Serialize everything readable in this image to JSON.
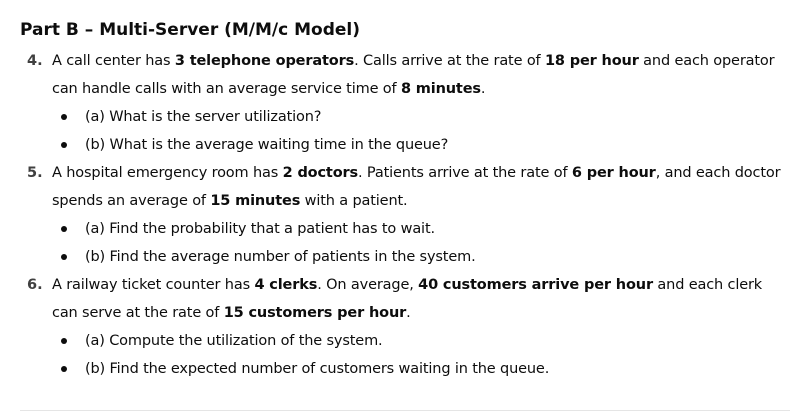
{
  "section": {
    "title": "Part B – Multi-Server (M/M/c Model)"
  },
  "problems": [
    {
      "number": "4.",
      "text": [
        {
          "t": "A call center has ",
          "b": false
        },
        {
          "t": "3 telephone operators",
          "b": true
        },
        {
          "t": ". Calls arrive at the rate of ",
          "b": false
        },
        {
          "t": "18 per hour",
          "b": true
        },
        {
          "t": " and each operator can handle calls with an average service time of ",
          "b": false
        },
        {
          "t": "8 minutes",
          "b": true
        },
        {
          "t": ".",
          "b": false
        }
      ],
      "subs": [
        "(a) What is the server utilization?",
        "(b) What is the average waiting time in the queue?"
      ]
    },
    {
      "number": "5.",
      "text": [
        {
          "t": "A hospital emergency room has ",
          "b": false
        },
        {
          "t": "2 doctors",
          "b": true
        },
        {
          "t": ". Patients arrive at the rate of ",
          "b": false
        },
        {
          "t": "6 per hour",
          "b": true
        },
        {
          "t": ", and each doctor spends an average of ",
          "b": false
        },
        {
          "t": "15 minutes",
          "b": true
        },
        {
          "t": " with a patient.",
          "b": false
        }
      ],
      "subs": [
        "(a) Find the probability that a patient has to wait.",
        "(b) Find the average number of patients in the system."
      ]
    },
    {
      "number": "6.",
      "text": [
        {
          "t": "A railway ticket counter has ",
          "b": false
        },
        {
          "t": "4 clerks",
          "b": true
        },
        {
          "t": ". On average, ",
          "b": false
        },
        {
          "t": "40 customers arrive per hour",
          "b": true
        },
        {
          "t": " and each clerk can serve at the rate of ",
          "b": false
        },
        {
          "t": "15 customers per hour",
          "b": true
        },
        {
          "t": ".",
          "b": false
        }
      ],
      "subs": [
        "(a) Compute the utilization of the system.",
        "(b) Find the expected number of customers waiting in the queue."
      ]
    }
  ]
}
